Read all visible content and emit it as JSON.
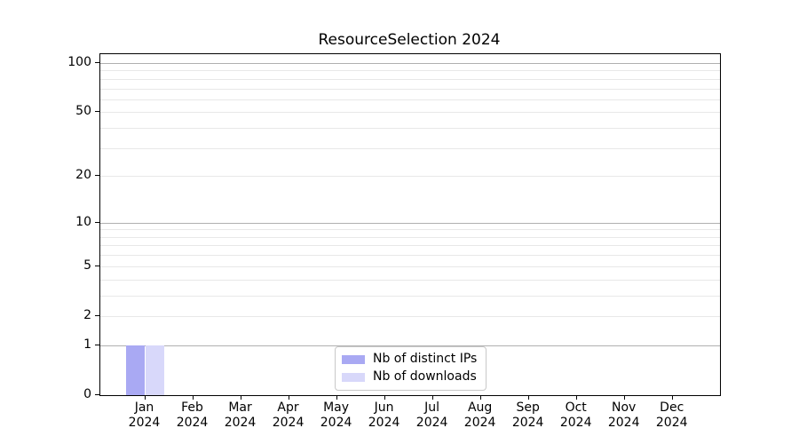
{
  "chart_data": {
    "type": "bar",
    "title": "ResourceSelection 2024",
    "year": "2024",
    "categories": [
      "Jan",
      "Feb",
      "Mar",
      "Apr",
      "May",
      "Jun",
      "Jul",
      "Aug",
      "Sep",
      "Oct",
      "Nov",
      "Dec"
    ],
    "series": [
      {
        "name": "Nb of distinct IPs",
        "color": "#a9a9f3",
        "values": [
          1,
          0,
          0,
          0,
          0,
          0,
          0,
          0,
          0,
          0,
          0,
          0
        ]
      },
      {
        "name": "Nb of downloads",
        "color": "#d8d8fa",
        "values": [
          1,
          0,
          0,
          0,
          0,
          0,
          0,
          0,
          0,
          0,
          0,
          0
        ]
      }
    ],
    "y_axis": {
      "scale": "log1p",
      "ylim": [
        0,
        100
      ],
      "major_ticks": [
        100,
        50,
        20,
        10,
        5,
        2,
        1,
        0
      ],
      "decade_ticks": [
        1,
        10,
        100
      ],
      "minor_gridlines": [
        3,
        4,
        6,
        7,
        8,
        9,
        30,
        40,
        60,
        70,
        80,
        90
      ]
    },
    "xlabel": "",
    "ylabel": "",
    "grid": true,
    "legend": {
      "position": "lower center",
      "entries": [
        "Nb of distinct IPs",
        "Nb of downloads"
      ]
    },
    "colors": {
      "major_grid": "#b0b0b0",
      "minor_grid": "#e8e8e8",
      "spine": "#000000",
      "background": "#ffffff"
    }
  }
}
